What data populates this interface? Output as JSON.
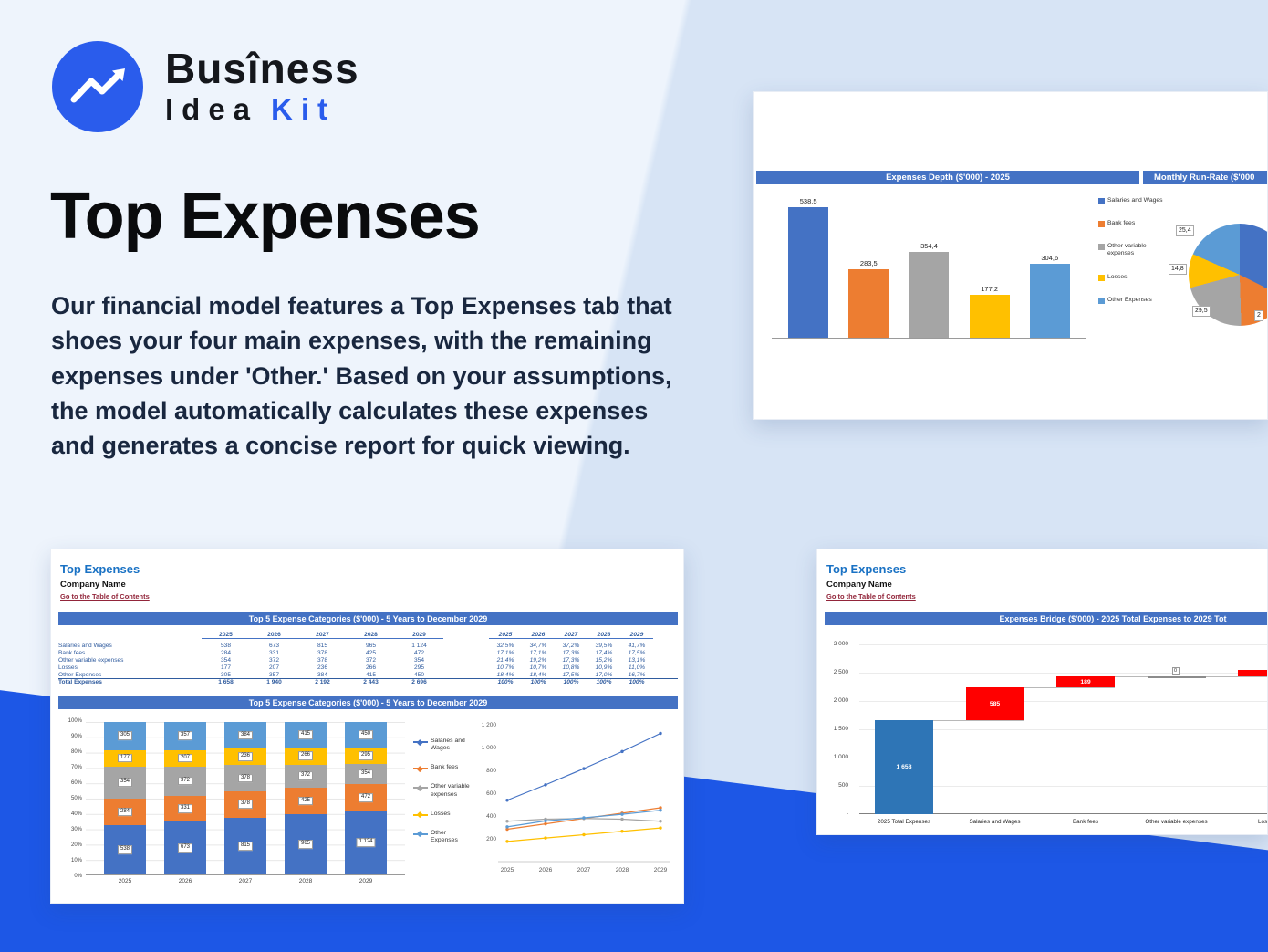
{
  "logo": {
    "brand_line1": "Busîness",
    "brand_line2_dark": "Idea",
    "brand_line2_accent": "Kit"
  },
  "hero": {
    "title": "Top Expenses",
    "description": "Our financial model features a Top Expenses tab that shoes your four main expenses, with the remaining expenses under 'Other.' Based on your assumptions, the model automatically calculates these expenses and generates a concise report for quick viewing."
  },
  "palette": {
    "series_colors": [
      "#4472c4",
      "#ed7d31",
      "#a5a5a5",
      "#ffc000",
      "#5b9bd5"
    ],
    "header_bar": "#4472c4",
    "accent_blue": "#2a5cec",
    "band_blue": "#1d57e6"
  },
  "series_names": [
    "Salaries and Wages",
    "Bank fees",
    "Other variable expenses",
    "Losses",
    "Other Expenses"
  ],
  "sheet1": {
    "app_title": "Top Expenses",
    "company": "Company Name",
    "toc_link": "Go to the Table of Contents",
    "table_header": "Top 5 Expense Categories ($'000) - 5 Years to December 2029",
    "chart_header": "Top 5 Expense Categories ($'000) - 5 Years to December 2029",
    "years": [
      "2025",
      "2026",
      "2027",
      "2028",
      "2029"
    ],
    "rows": [
      {
        "label": "Salaries and Wages",
        "values": [
          "538",
          "673",
          "815",
          "965",
          "1 124"
        ],
        "pcts": [
          "32,5%",
          "34,7%",
          "37,2%",
          "39,5%",
          "41,7%"
        ]
      },
      {
        "label": "Bank fees",
        "values": [
          "284",
          "331",
          "378",
          "425",
          "472"
        ],
        "pcts": [
          "17,1%",
          "17,1%",
          "17,3%",
          "17,4%",
          "17,5%"
        ]
      },
      {
        "label": "Other variable expenses",
        "values": [
          "354",
          "372",
          "378",
          "372",
          "354"
        ],
        "pcts": [
          "21,4%",
          "19,2%",
          "17,3%",
          "15,2%",
          "13,1%"
        ]
      },
      {
        "label": "Losses",
        "values": [
          "177",
          "207",
          "236",
          "266",
          "295"
        ],
        "pcts": [
          "10,7%",
          "10,7%",
          "10,8%",
          "10,9%",
          "11,0%"
        ]
      },
      {
        "label": "Other Expenses",
        "values": [
          "305",
          "357",
          "384",
          "415",
          "450"
        ],
        "pcts": [
          "18,4%",
          "18,4%",
          "17,5%",
          "17,0%",
          "16,7%"
        ]
      }
    ],
    "total_row": {
      "label": "Total Expenses",
      "values": [
        "1 658",
        "1 940",
        "2 192",
        "2 443",
        "2 696"
      ],
      "pcts": [
        "100%",
        "100%",
        "100%",
        "100%",
        "100%"
      ]
    }
  },
  "sheet2": {
    "app_title": "Top Expenses",
    "company": "Company Name",
    "toc_link": "Go to the Table of Contents"
  },
  "chart_data": [
    {
      "type": "bar",
      "title": "Expenses Depth ($'000) - 2025",
      "categories": [
        "Salaries and Wages",
        "Bank fees",
        "Other variable expenses",
        "Losses",
        "Other Expenses"
      ],
      "values": [
        538.5,
        283.5,
        354.4,
        177.2,
        304.6
      ],
      "labels": [
        "538,5",
        "283,5",
        "354,4",
        "177,2",
        "304,6"
      ],
      "ylim": [
        0,
        600
      ],
      "legend_position": "right",
      "grid": false
    },
    {
      "type": "pie",
      "title": "Monthly Run-Rate ($'000",
      "labels": [
        "Salaries and Wages",
        "Bank fees",
        "Other variable expenses",
        "Losses",
        "Other Expenses"
      ],
      "values": [
        44.8,
        23.6,
        29.5,
        14.8,
        25.4
      ],
      "visible_labels": [
        "25,4",
        "14,8",
        "29,5",
        "2"
      ]
    },
    {
      "type": "stacked-bar-100",
      "title": "Top 5 Expense Categories ($'000) - 5 Years to December 2029",
      "categories": [
        "2025",
        "2026",
        "2027",
        "2028",
        "2029"
      ],
      "series": [
        {
          "name": "Salaries and Wages",
          "values": [
            538,
            673,
            815,
            965,
            1124
          ],
          "labels": [
            "538",
            "673",
            "815",
            "965",
            "1 124"
          ]
        },
        {
          "name": "Bank fees",
          "values": [
            284,
            331,
            378,
            425,
            472
          ],
          "labels": [
            "284",
            "331",
            "378",
            "425",
            "472"
          ]
        },
        {
          "name": "Other variable expenses",
          "values": [
            354,
            372,
            378,
            372,
            354
          ],
          "labels": [
            "354",
            "372",
            "378",
            "372",
            "354"
          ]
        },
        {
          "name": "Losses",
          "values": [
            177,
            207,
            236,
            266,
            295
          ],
          "labels": [
            "177",
            "207",
            "236",
            "266",
            "295"
          ]
        },
        {
          "name": "Other Expenses",
          "values": [
            305,
            357,
            384,
            415,
            450
          ],
          "labels": [
            "305",
            "357",
            "384",
            "415",
            "450"
          ]
        }
      ],
      "y_ticks": [
        "100%",
        "90%",
        "80%",
        "70%",
        "60%",
        "50%",
        "40%",
        "30%",
        "20%",
        "10%",
        "0%"
      ],
      "grid": true
    },
    {
      "type": "line",
      "categories": [
        "2025",
        "2026",
        "2027",
        "2028",
        "2029"
      ],
      "series": [
        {
          "name": "Salaries and Wages",
          "values": [
            538,
            673,
            815,
            965,
            1124
          ]
        },
        {
          "name": "Bank fees",
          "values": [
            284,
            331,
            378,
            425,
            472
          ]
        },
        {
          "name": "Other variable expenses",
          "values": [
            354,
            372,
            378,
            372,
            354
          ]
        },
        {
          "name": "Losses",
          "values": [
            177,
            207,
            236,
            266,
            295
          ]
        },
        {
          "name": "Other Expenses",
          "values": [
            305,
            357,
            384,
            415,
            450
          ]
        }
      ],
      "ylim": [
        0,
        1200
      ],
      "y_ticks": [
        "1 200",
        "1 000",
        "800",
        "600",
        "400",
        "200"
      ],
      "grid": false
    },
    {
      "type": "waterfall",
      "title": "Expenses Bridge ($'000) - 2025 Total Expenses to 2029 Tot",
      "categories": [
        "2025 Total Expenses",
        "Salaries and Wages",
        "Bank fees",
        "Other variable expenses",
        "Losses"
      ],
      "start": [
        0,
        1658,
        2243,
        2432,
        2432
      ],
      "end": [
        1658,
        2243,
        2432,
        2432,
        2550
      ],
      "labels": [
        "1 658",
        "585",
        "189",
        "0",
        ""
      ],
      "colors": [
        "#2e75b6",
        "#ff0000",
        "#ff0000",
        "#8c8c8c",
        "#ff0000"
      ],
      "ylim": [
        0,
        3000
      ],
      "y_ticks": [
        "3 000",
        "2 500",
        "2 000",
        "1 500",
        "1 000",
        "500",
        "-"
      ],
      "grid": true
    }
  ]
}
